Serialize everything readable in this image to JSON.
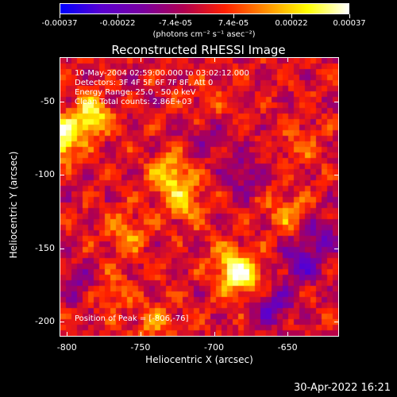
{
  "colorbar": {
    "tick_labels": [
      "-0.00037",
      "-0.00022",
      "-7.4e-05",
      "7.4e-05",
      "0.00022",
      "0.00037"
    ],
    "units": "(photons cm⁻² s⁻¹ asec⁻²)",
    "colors": [
      "#0000ff",
      "#5a00d0",
      "#7a00a0",
      "#b00050",
      "#ff2000",
      "#ff9000",
      "#ffff00",
      "#ffffff"
    ]
  },
  "header": {
    "timerange": "10-May-2004 02:59:00.000 to 03:02:12.000",
    "detectors": "Detectors: 3F 4F 5F 6F 7F 8F, Att 0",
    "energy": "Energy Range: 25.0 - 50.0 keV",
    "clean": "Clean     Total counts: 2.86E+03"
  },
  "peak_text": "Position of Peak = [-806,-76]",
  "timestamp": "30-Apr-2022 16:21",
  "chart_data": {
    "type": "heatmap",
    "title": "Reconstructed RHESSI Image",
    "xlabel": "Heliocentric X (arcsec)",
    "ylabel": "Heliocentric Y (arcsec)",
    "xlim": [
      -805,
      -615
    ],
    "ylim": [
      -210,
      -20
    ],
    "xticks": [
      -800,
      -750,
      -700,
      -650
    ],
    "yticks": [
      -50,
      -100,
      -150,
      -200
    ],
    "xtick_labels": [
      "-800",
      "-750",
      "-700",
      "-650"
    ],
    "ytick_labels": [
      "-50",
      "-100",
      "-150",
      "-200"
    ],
    "grid": false,
    "colorbar_range": [
      -0.00037,
      0.00037
    ],
    "hotspots": [
      {
        "x": -806,
        "y": -76,
        "value": 0.00037
      },
      {
        "x": -785,
        "y": -60,
        "value": 0.0003
      },
      {
        "x": -730,
        "y": -100,
        "value": 0.00025
      },
      {
        "x": -720,
        "y": -120,
        "value": 0.0002
      },
      {
        "x": -680,
        "y": -170,
        "value": 0.00028
      },
      {
        "x": -690,
        "y": -160,
        "value": 0.00018
      },
      {
        "x": -760,
        "y": -140,
        "value": 0.00016
      },
      {
        "x": -770,
        "y": -180,
        "value": 0.00012
      },
      {
        "x": -650,
        "y": -125,
        "value": 0.00015
      },
      {
        "x": -640,
        "y": -80,
        "value": 0.0001
      },
      {
        "x": -705,
        "y": -55,
        "value": 0.0001
      },
      {
        "x": -740,
        "y": -200,
        "value": 0.00014
      }
    ],
    "coldspots": [
      {
        "x": -640,
        "y": -160,
        "value": -0.00022
      },
      {
        "x": -660,
        "y": -190,
        "value": -0.0002
      },
      {
        "x": -680,
        "y": -100,
        "value": -0.00014
      },
      {
        "x": -625,
        "y": -140,
        "value": -0.00016
      },
      {
        "x": -790,
        "y": -175,
        "value": -0.00012
      },
      {
        "x": -705,
        "y": -70,
        "value": -0.00012
      }
    ]
  }
}
